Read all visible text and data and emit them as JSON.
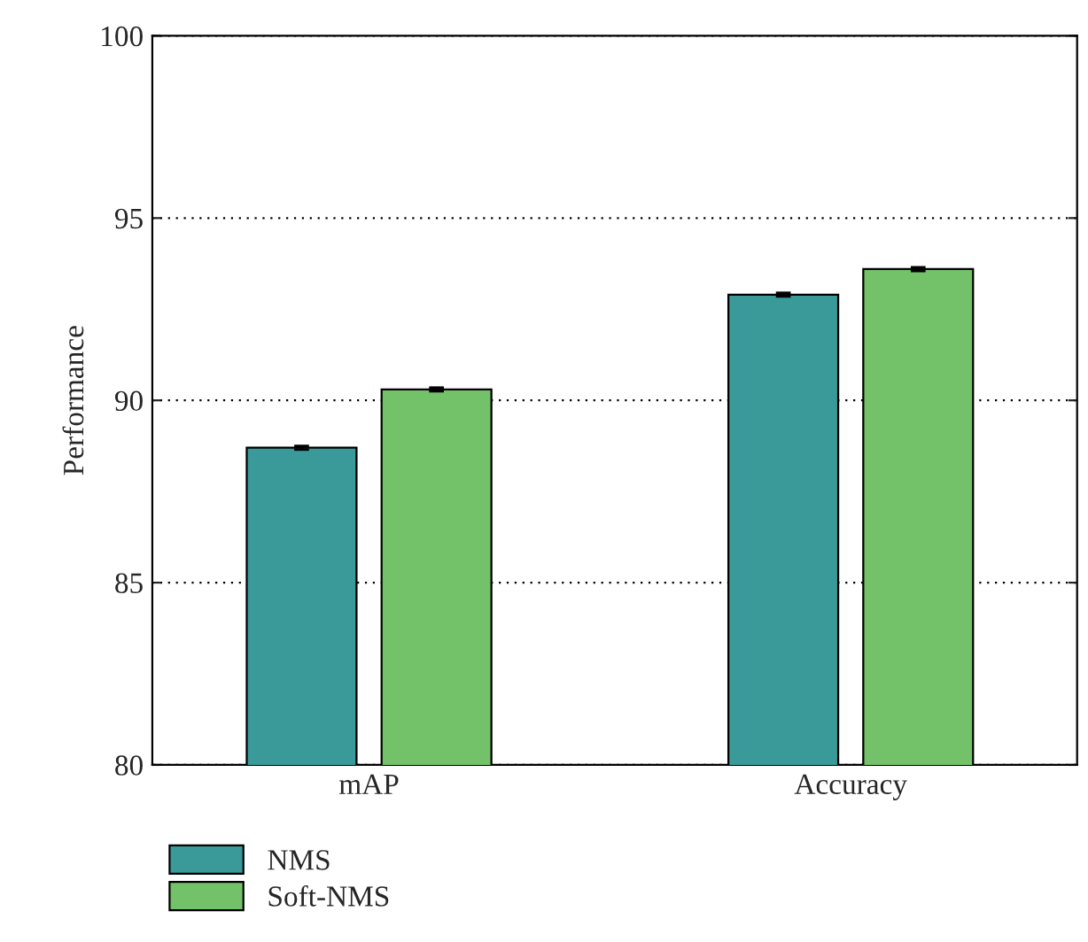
{
  "chart_data": {
    "type": "bar",
    "ylabel": "Performance",
    "categories": [
      "mAP",
      "Accuracy"
    ],
    "series": [
      {
        "name": "NMS",
        "color": "#3a9a99",
        "values": [
          88.7,
          92.9
        ],
        "errors": [
          0.05,
          0.05
        ]
      },
      {
        "name": "Soft-NMS",
        "color": "#73c26a",
        "values": [
          90.3,
          93.6
        ],
        "errors": [
          0.05,
          0.05
        ]
      }
    ],
    "ylim": [
      80,
      100
    ],
    "yticks": [
      80,
      85,
      90,
      95,
      100
    ],
    "grid": "y",
    "legend": "bottom left"
  }
}
